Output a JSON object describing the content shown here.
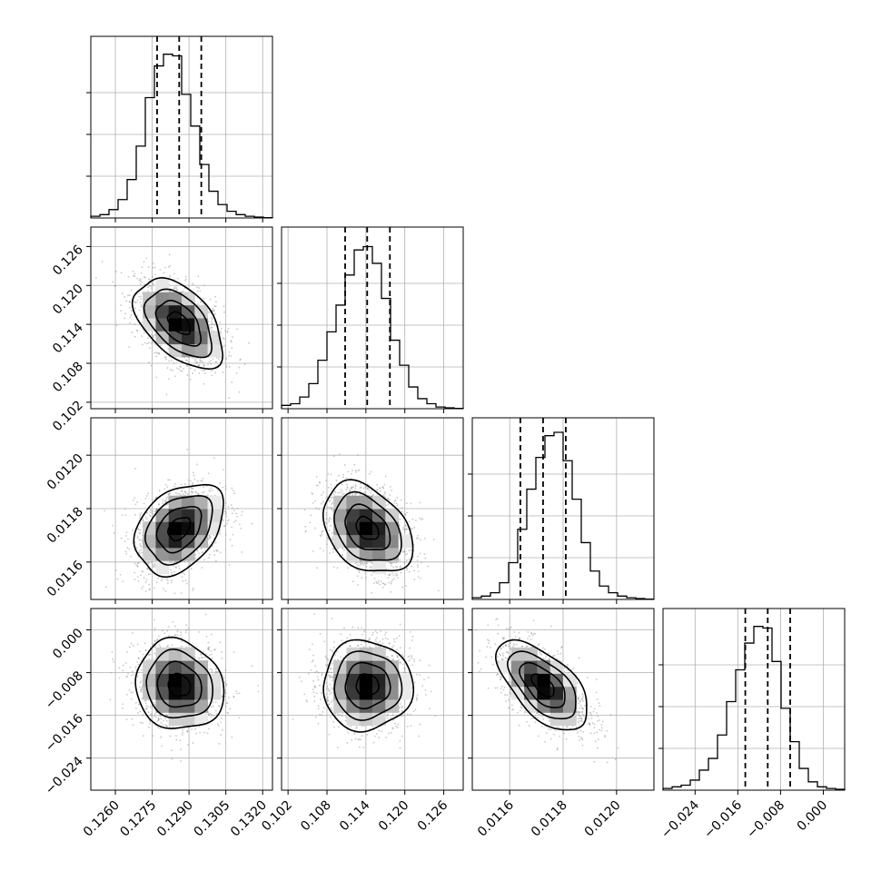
{
  "chart_data": {
    "type": "corner",
    "grid": true,
    "colors": {
      "line": "#000000",
      "grid": "#b0b0b0",
      "scatter": "#9a9a9a",
      "background": "#ffffff"
    },
    "params": [
      {
        "range": [
          0.125,
          0.1324
        ],
        "ticks": [
          "0.1260",
          "0.1275",
          "0.1290",
          "0.1305",
          "0.1320"
        ],
        "quantiles": [
          0.1277,
          0.1286,
          0.1295
        ]
      },
      {
        "range": [
          0.101,
          0.129
        ],
        "ticks": [
          "0.102",
          "0.108",
          "0.114",
          "0.120",
          "0.126"
        ],
        "quantiles": [
          0.1108,
          0.1142,
          0.1177
        ]
      },
      {
        "range": [
          0.01146,
          0.01214
        ],
        "ticks": [
          "0.0116",
          "0.0118",
          "0.0120"
        ],
        "quantiles": [
          0.01164,
          0.011725,
          0.01181
        ]
      },
      {
        "range": [
          -0.03,
          0.004
        ],
        "ticks": [
          "−0.024",
          "−0.016",
          "−0.008",
          "0.000"
        ],
        "quantiles": [
          -0.0146,
          -0.0104,
          -0.0062
        ]
      }
    ],
    "histograms": [
      [
        0.01,
        0.02,
        0.05,
        0.11,
        0.23,
        0.43,
        0.72,
        0.91,
        0.98,
        0.97,
        0.74,
        0.55,
        0.32,
        0.16,
        0.08,
        0.04,
        0.02,
        0.01,
        0.005,
        0.002
      ],
      [
        0.02,
        0.03,
        0.07,
        0.15,
        0.29,
        0.46,
        0.62,
        0.8,
        0.95,
        0.97,
        0.87,
        0.66,
        0.41,
        0.26,
        0.13,
        0.06,
        0.03,
        0.01,
        0.005,
        0.002
      ],
      [
        0.01,
        0.02,
        0.04,
        0.1,
        0.22,
        0.42,
        0.66,
        0.85,
        0.98,
        1.0,
        0.83,
        0.6,
        0.34,
        0.17,
        0.08,
        0.04,
        0.02,
        0.01,
        0.005,
        0.002
      ],
      [
        0.01,
        0.02,
        0.03,
        0.06,
        0.12,
        0.19,
        0.33,
        0.53,
        0.72,
        0.88,
        0.98,
        0.97,
        0.77,
        0.49,
        0.29,
        0.13,
        0.05,
        0.02,
        0.01,
        0.005
      ]
    ],
    "correlations": {
      "1-0": -0.5,
      "2-0": 0.35,
      "2-1": -0.35,
      "3-0": -0.1,
      "3-1": 0.0,
      "3-2": -0.6
    }
  }
}
